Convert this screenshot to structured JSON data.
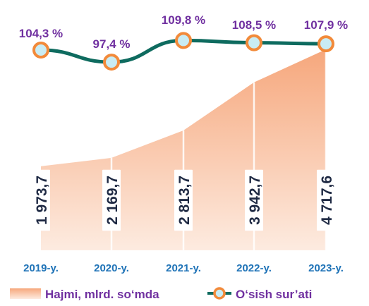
{
  "chart_data": {
    "type": "area",
    "categories": [
      "2019-y.",
      "2020-y.",
      "2021-y.",
      "2022-y.",
      "2023-y."
    ],
    "series": [
      {
        "name": "Hajmi, mlrd. so‘mda",
        "kind": "area",
        "values": [
          1973.7,
          2169.7,
          2813.7,
          3942.7,
          4717.6
        ],
        "labels": [
          "1 973,7",
          "2 169,7",
          "2 813,7",
          "3 942,7",
          "4 717,6"
        ]
      },
      {
        "name": "O‘sish sur’ati",
        "kind": "line",
        "values": [
          104.3,
          97.4,
          109.8,
          108.5,
          107.9
        ],
        "labels": [
          "104,3 %",
          "97,4 %",
          "109,8 %",
          "108,5 %",
          "107,9 %"
        ]
      }
    ],
    "legend": "bottom",
    "grid": false,
    "colors": {
      "area_top": "#F6A77C",
      "area_bottom": "#FDEBE0",
      "line": "#0E6B5F",
      "marker_fill": "#C9ECF4",
      "marker_stroke": "#F28A3A",
      "pct_label": "#7030A0",
      "x_label": "#1F73B7",
      "value_label": "#1F2A44",
      "legend_text": "#7030A0"
    }
  }
}
